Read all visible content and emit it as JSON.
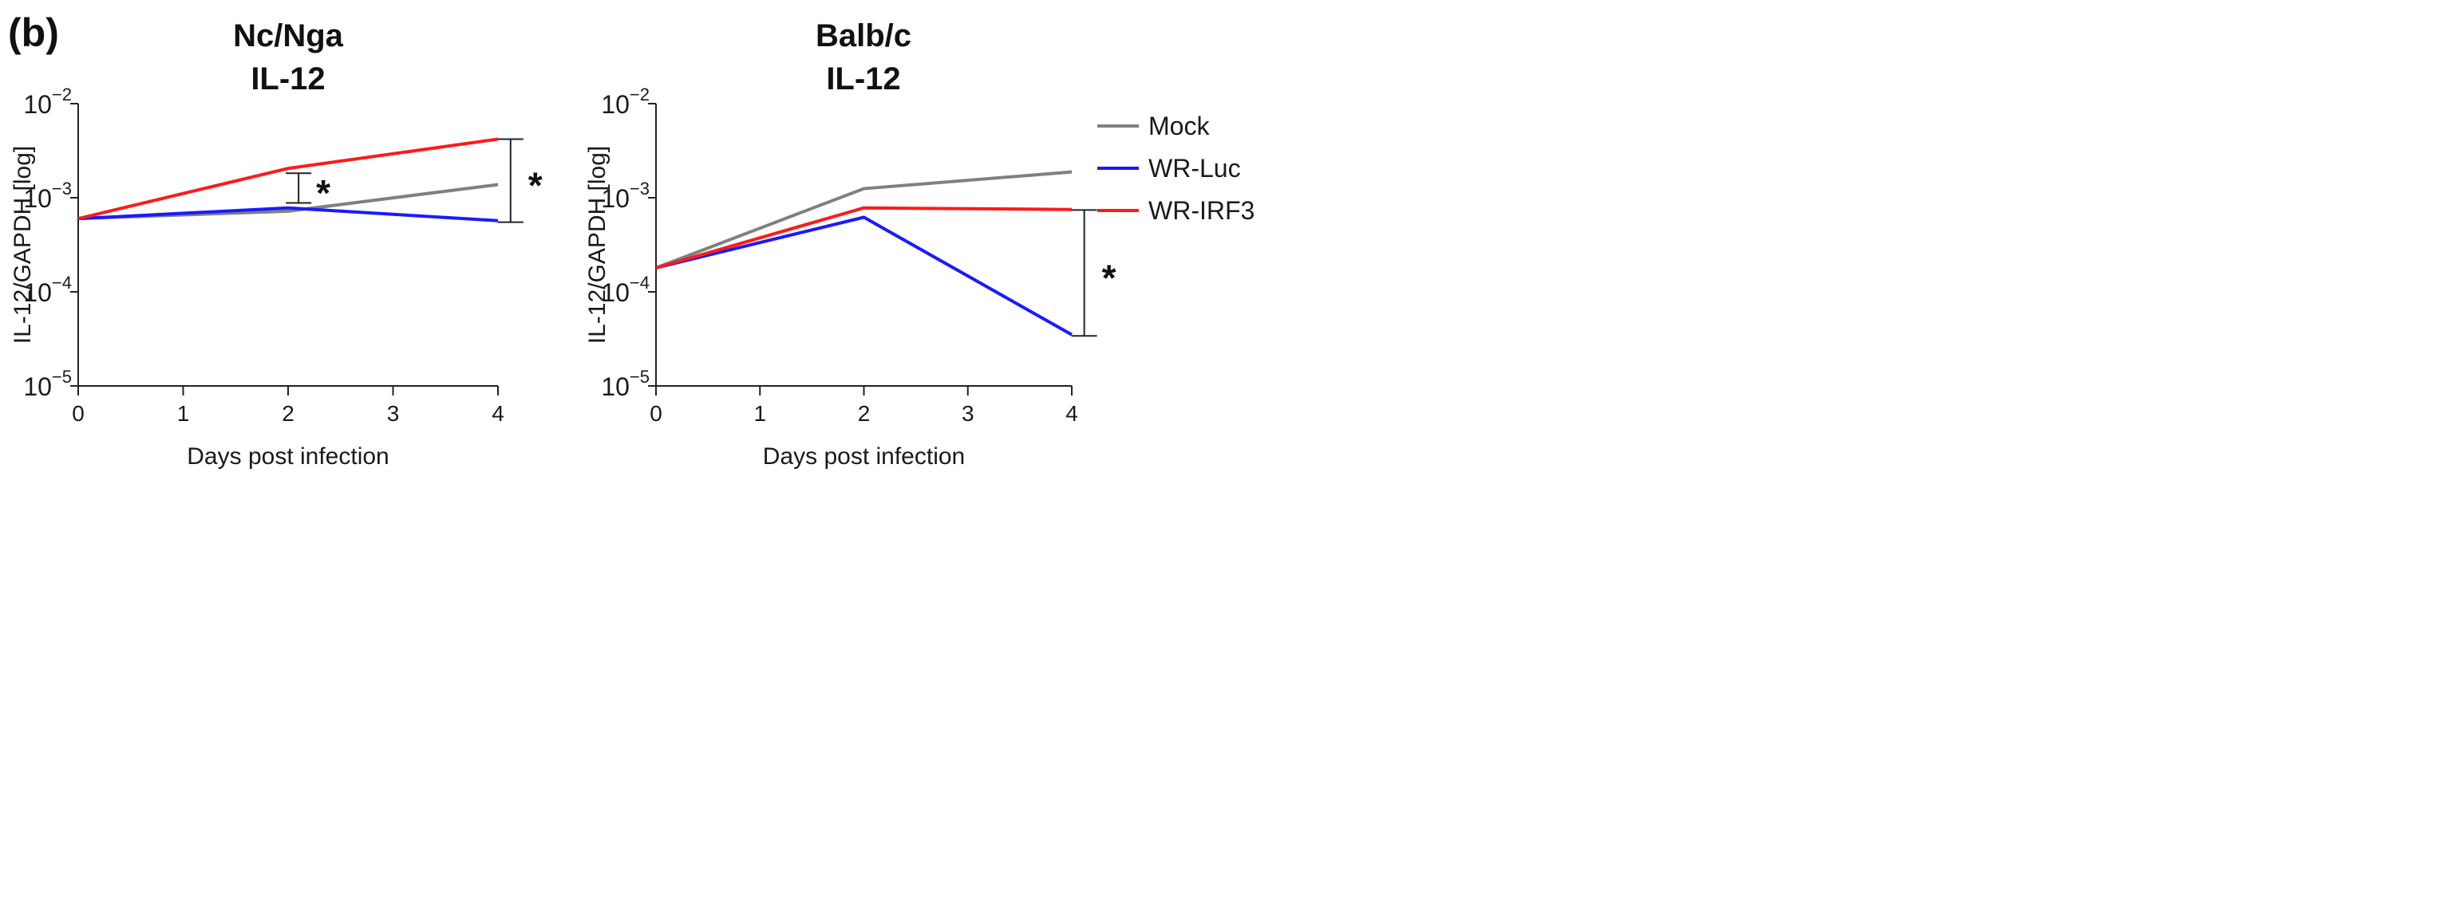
{
  "panel_label": "(b)",
  "chart_data": [
    {
      "type": "line",
      "title_line1": "Nc/Nga",
      "title_line2": "IL-12",
      "xlabel": "Days post infection",
      "ylabel": "IL-12/GAPDH [log]",
      "yscale": "log",
      "xlim": [
        0,
        4
      ],
      "ylim": [
        1e-05,
        0.01
      ],
      "x_ticks": [
        "0",
        "1",
        "2",
        "3",
        "4"
      ],
      "y_ticks": [
        {
          "base": "10",
          "exp": "−2"
        },
        {
          "base": "10",
          "exp": "−3"
        },
        {
          "base": "10",
          "exp": "−4"
        },
        {
          "base": "10",
          "exp": "−5"
        }
      ],
      "x": [
        0,
        2,
        4
      ],
      "series": [
        {
          "name": "Mock",
          "color": "#808080",
          "values": [
            0.0006,
            0.00072,
            0.00138
          ]
        },
        {
          "name": "WR-Luc",
          "color": "#1a1aff",
          "values": [
            0.0006,
            0.00078,
            0.00057
          ]
        },
        {
          "name": "WR-IRF3",
          "color": "#ff1a1a",
          "values": [
            0.0006,
            0.00205,
            0.0042
          ]
        }
      ],
      "annotations": [
        {
          "text": "*",
          "x": 2.1,
          "y_low": 0.00088,
          "y_high": 0.00182
        },
        {
          "text": "*",
          "x": 4.12,
          "y_low": 0.00055,
          "y_high": 0.0042
        }
      ]
    },
    {
      "type": "line",
      "title_line1": "Balb/c",
      "title_line2": "IL-12",
      "xlabel": "Days post infection",
      "ylabel": "IL-12/GAPDH [log]",
      "yscale": "log",
      "xlim": [
        0,
        4
      ],
      "ylim": [
        1e-05,
        0.01
      ],
      "x_ticks": [
        "0",
        "1",
        "2",
        "3",
        "4"
      ],
      "y_ticks": [
        {
          "base": "10",
          "exp": "−2"
        },
        {
          "base": "10",
          "exp": "−3"
        },
        {
          "base": "10",
          "exp": "−4"
        },
        {
          "base": "10",
          "exp": "−5"
        }
      ],
      "x": [
        0,
        2,
        4
      ],
      "series": [
        {
          "name": "Mock",
          "color": "#808080",
          "values": [
            0.00018,
            0.00125,
            0.00188
          ]
        },
        {
          "name": "WR-Luc",
          "color": "#1a1aff",
          "values": [
            0.00018,
            0.00062,
            3.5e-05
          ]
        },
        {
          "name": "WR-IRF3",
          "color": "#ff1a1a",
          "values": [
            0.00018,
            0.00078,
            0.00075
          ]
        }
      ],
      "annotations": [
        {
          "text": "*",
          "x": 4.12,
          "y_low": 3.4e-05,
          "y_high": 0.00074
        }
      ]
    }
  ],
  "legend": [
    {
      "name": "Mock",
      "color": "#808080"
    },
    {
      "name": "WR-Luc",
      "color": "#1a1aff"
    },
    {
      "name": "WR-IRF3",
      "color": "#ff1a1a"
    }
  ]
}
